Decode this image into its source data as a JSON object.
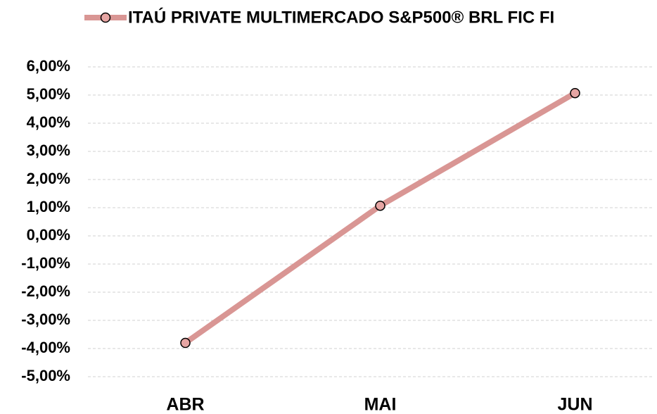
{
  "chart_data": {
    "type": "line",
    "categories": [
      "ABR",
      "MAI",
      "JUN"
    ],
    "series": [
      {
        "name": "ITAÚ PRIVATE MULTIMERCADO S&P500® BRL FIC FI",
        "color": "#d99694",
        "values": [
          -3.8,
          1.07,
          5.07
        ]
      }
    ],
    "ylim": [
      -5,
      6
    ],
    "yticks": [
      {
        "value": -5,
        "label": "-5,00%"
      },
      {
        "value": -4,
        "label": "-4,00%"
      },
      {
        "value": -3,
        "label": "-3,00%"
      },
      {
        "value": -2,
        "label": "-2,00%"
      },
      {
        "value": -1,
        "label": "-1,00%"
      },
      {
        "value": 0,
        "label": "0,00%"
      },
      {
        "value": 1,
        "label": "1,00%"
      },
      {
        "value": 2,
        "label": "2,00%"
      },
      {
        "value": 3,
        "label": "3,00%"
      },
      {
        "value": 4,
        "label": "4,00%"
      },
      {
        "value": 5,
        "label": "5,00%"
      },
      {
        "value": 6,
        "label": "6,00%"
      }
    ],
    "grid": true,
    "legend": "top"
  }
}
